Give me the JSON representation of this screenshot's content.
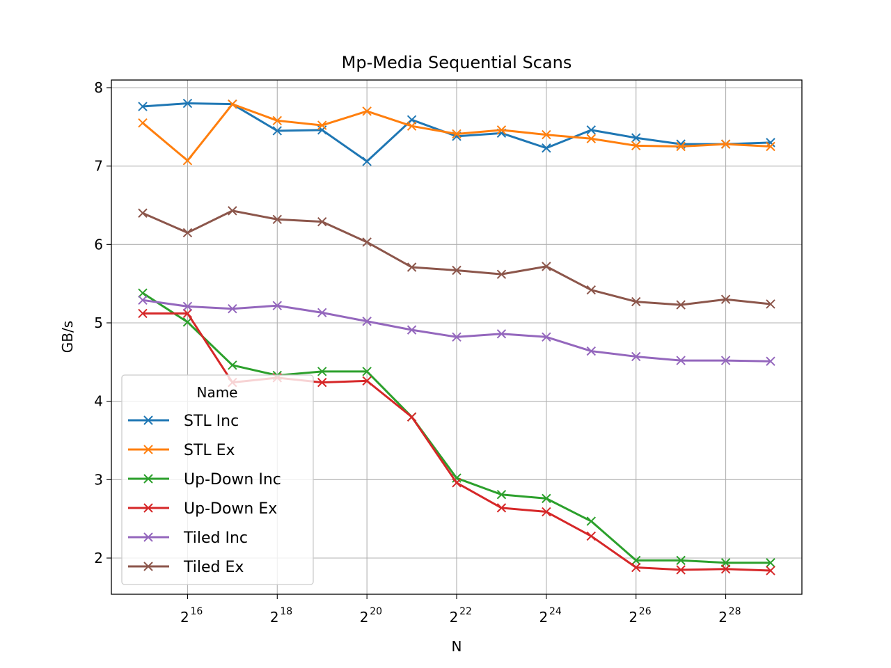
{
  "chart_data": {
    "type": "line",
    "title": "Mp-Media Sequential Scans",
    "xlabel": "N",
    "ylabel": "GB/s",
    "xscale": "log2",
    "x_exponents": [
      15,
      16,
      17,
      18,
      19,
      20,
      21,
      22,
      23,
      24,
      25,
      26,
      27,
      28,
      29
    ],
    "x_ticks": [
      16,
      18,
      20,
      22,
      24,
      26,
      28
    ],
    "x_tick_base": "2",
    "y_ticks": [
      2,
      3,
      4,
      5,
      6,
      7,
      8
    ],
    "ylim": [
      1.55,
      8.1
    ],
    "grid": true,
    "legend": {
      "title": "Name",
      "placement": "lower-left"
    },
    "series": [
      {
        "name": "STL Inc",
        "color": "#1f77b4",
        "values": [
          7.76,
          7.8,
          7.79,
          7.45,
          7.46,
          7.06,
          7.59,
          7.38,
          7.42,
          7.23,
          7.46,
          7.36,
          7.28,
          7.28,
          7.3
        ]
      },
      {
        "name": "STL Ex",
        "color": "#ff7f0e",
        "values": [
          7.55,
          7.07,
          7.79,
          7.58,
          7.52,
          7.7,
          7.51,
          7.41,
          7.46,
          7.4,
          7.35,
          7.26,
          7.25,
          7.28,
          7.25
        ]
      },
      {
        "name": "Up-Down Inc",
        "color": "#2ca02c",
        "values": [
          5.38,
          5.01,
          4.46,
          4.33,
          4.38,
          4.38,
          3.8,
          3.02,
          2.81,
          2.76,
          2.47,
          1.97,
          1.97,
          1.94,
          1.94
        ]
      },
      {
        "name": "Up-Down Ex",
        "color": "#d62728",
        "values": [
          5.12,
          5.12,
          4.24,
          4.3,
          4.24,
          4.26,
          3.8,
          2.96,
          2.64,
          2.59,
          2.28,
          1.88,
          1.85,
          1.86,
          1.84
        ]
      },
      {
        "name": "Tiled Inc",
        "color": "#9467bd",
        "values": [
          5.29,
          5.21,
          5.18,
          5.22,
          5.13,
          5.02,
          4.91,
          4.82,
          4.86,
          4.82,
          4.64,
          4.57,
          4.52,
          4.52,
          4.51
        ]
      },
      {
        "name": "Tiled Ex",
        "color": "#8c564b",
        "values": [
          6.4,
          6.15,
          6.43,
          6.32,
          6.29,
          6.03,
          5.71,
          5.67,
          5.62,
          5.72,
          5.42,
          5.27,
          5.23,
          5.3,
          5.24
        ]
      }
    ]
  }
}
